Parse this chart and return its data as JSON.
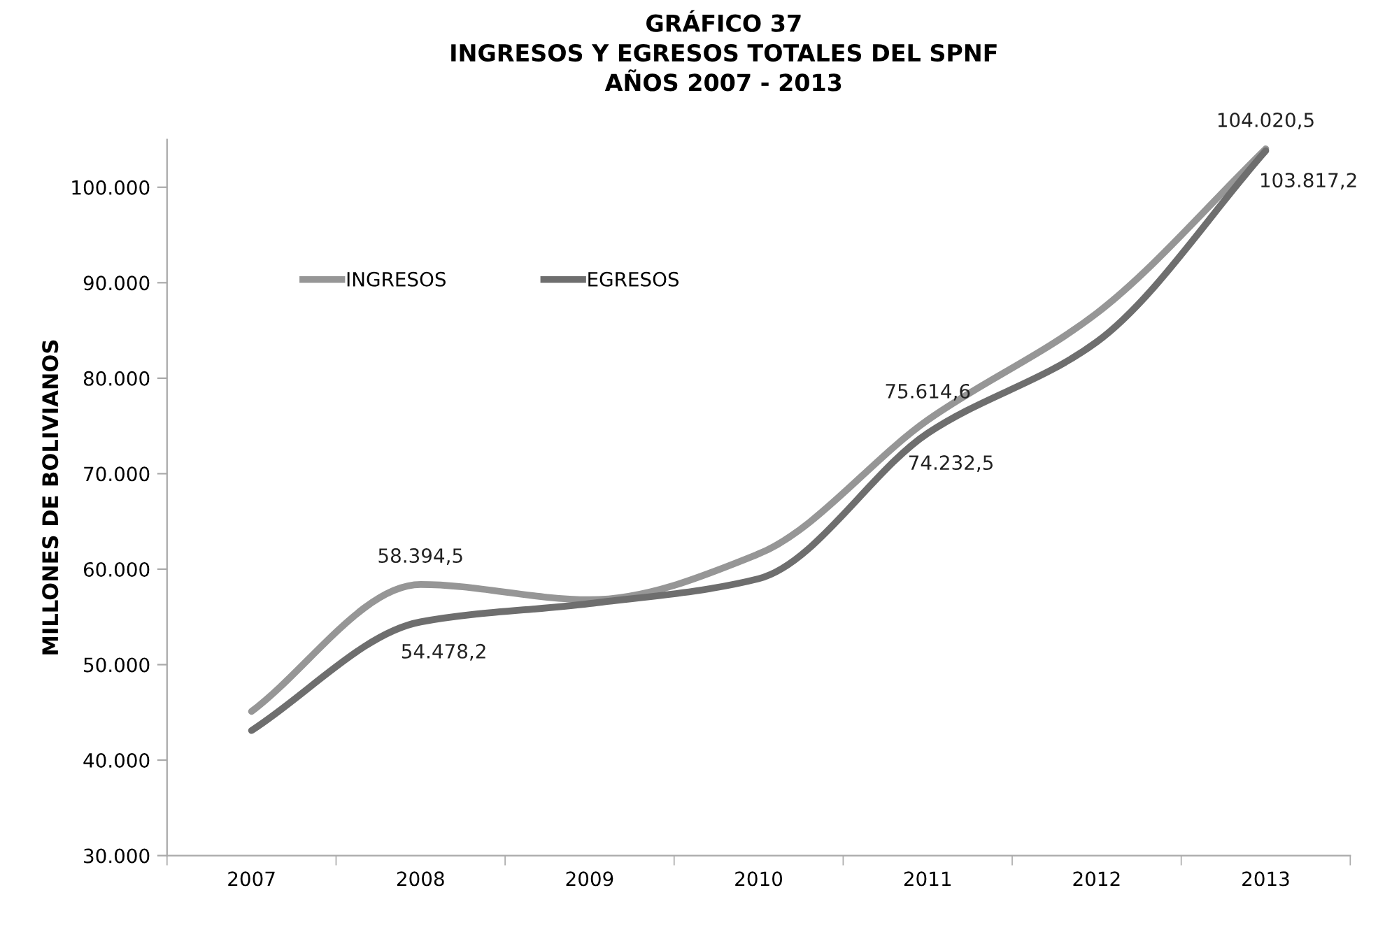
{
  "chart_data": {
    "type": "line",
    "title": "GRÁFICO 37\nINGRESOS Y EGRESOS TOTALES DEL SPNF\nAÑOS 2007 - 2013",
    "ylabel": "MILLONES DE BOLIVIANOS",
    "categories": [
      "2007",
      "2008",
      "2009",
      "2010",
      "2011",
      "2012",
      "2013"
    ],
    "series": [
      {
        "name": "INGRESOS",
        "color": "#969696",
        "values": [
          45100,
          58394.5,
          56800,
          61600,
          75614.6,
          86800,
          104020.5
        ],
        "value_labels": [
          null,
          "58.394,5",
          null,
          null,
          "75.614,6",
          null,
          "104.020,5"
        ]
      },
      {
        "name": "EGRESOS",
        "color": "#6e6e6e",
        "values": [
          43100,
          54478.2,
          56400,
          59000,
          74232.5,
          83800,
          103817.2
        ],
        "value_labels": [
          null,
          "54.478,2",
          null,
          null,
          "74.232,5",
          null,
          "103.817,2"
        ]
      }
    ],
    "ylim": [
      30000,
      105000
    ],
    "yticks": [
      {
        "value": 30000,
        "label": "30.000"
      },
      {
        "value": 40000,
        "label": "40.000"
      },
      {
        "value": 50000,
        "label": "50.000"
      },
      {
        "value": 60000,
        "label": "60.000"
      },
      {
        "value": 70000,
        "label": "70.000"
      },
      {
        "value": 80000,
        "label": "80.000"
      },
      {
        "value": 90000,
        "label": "90.000"
      },
      {
        "value": 100000,
        "label": "100.000"
      }
    ],
    "legend": "top left",
    "grid": false,
    "marker": "none",
    "line_style": "solid"
  }
}
